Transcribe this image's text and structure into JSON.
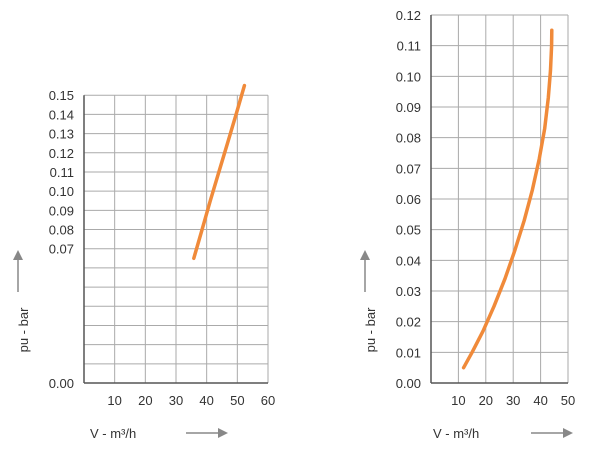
{
  "chart_data": [
    {
      "type": "line",
      "xlabel": "V - m³/h",
      "ylabel": "pu - bar",
      "xlim": [
        0,
        60
      ],
      "ylim": [
        0,
        0.16
      ],
      "xticks": [
        10,
        20,
        30,
        40,
        50,
        60
      ],
      "xtick_labels": [
        "10",
        "20",
        "30",
        "40",
        "50",
        "60"
      ],
      "yticks": [
        0,
        0.01,
        0.02,
        0.03,
        0.04,
        0.05,
        0.06,
        0.07,
        0.08,
        0.09,
        0.1,
        0.11,
        0.12,
        0.13,
        0.14,
        0.15
      ],
      "ytick_labels": [
        "0.00",
        "",
        "",
        "",
        "",
        "",
        "",
        "0.07",
        "0.08",
        "0.09",
        "0.10",
        "0.11",
        "0.12",
        "0.13",
        "0.14",
        "0.15"
      ],
      "grid": true,
      "series": [
        {
          "color": "#f08a3a",
          "x": [
            35.8,
            38.5,
            41.2,
            44.0,
            46.8,
            49.6,
            52.3
          ],
          "y": [
            0.065,
            0.08,
            0.095,
            0.11,
            0.125,
            0.14,
            0.155
          ]
        }
      ]
    },
    {
      "type": "line",
      "xlabel": "V - m³/h",
      "ylabel": "pu - bar",
      "xlim": [
        0,
        50
      ],
      "ylim": [
        0,
        0.12
      ],
      "xticks": [
        10,
        20,
        30,
        40,
        50
      ],
      "xtick_labels": [
        "10",
        "20",
        "30",
        "40",
        "50"
      ],
      "yticks": [
        0,
        0.01,
        0.02,
        0.03,
        0.04,
        0.05,
        0.06,
        0.07,
        0.08,
        0.09,
        0.1,
        0.11,
        0.12
      ],
      "ytick_labels": [
        "0.00",
        "0.01",
        "0.02",
        "0.03",
        "0.04",
        "0.05",
        "0.06",
        "0.07",
        "0.08",
        "0.09",
        "0.10",
        "0.11",
        "0.12"
      ],
      "grid": true,
      "series": [
        {
          "color": "#f08a3a",
          "x": [
            11.9,
            15.0,
            19.0,
            23.0,
            27.0,
            30.5,
            34.0,
            37.0,
            39.5,
            41.5,
            42.8,
            43.6,
            44.0,
            44.1
          ],
          "y": [
            0.005,
            0.01,
            0.017,
            0.025,
            0.034,
            0.043,
            0.053,
            0.063,
            0.073,
            0.083,
            0.093,
            0.102,
            0.11,
            0.115
          ]
        }
      ]
    }
  ]
}
